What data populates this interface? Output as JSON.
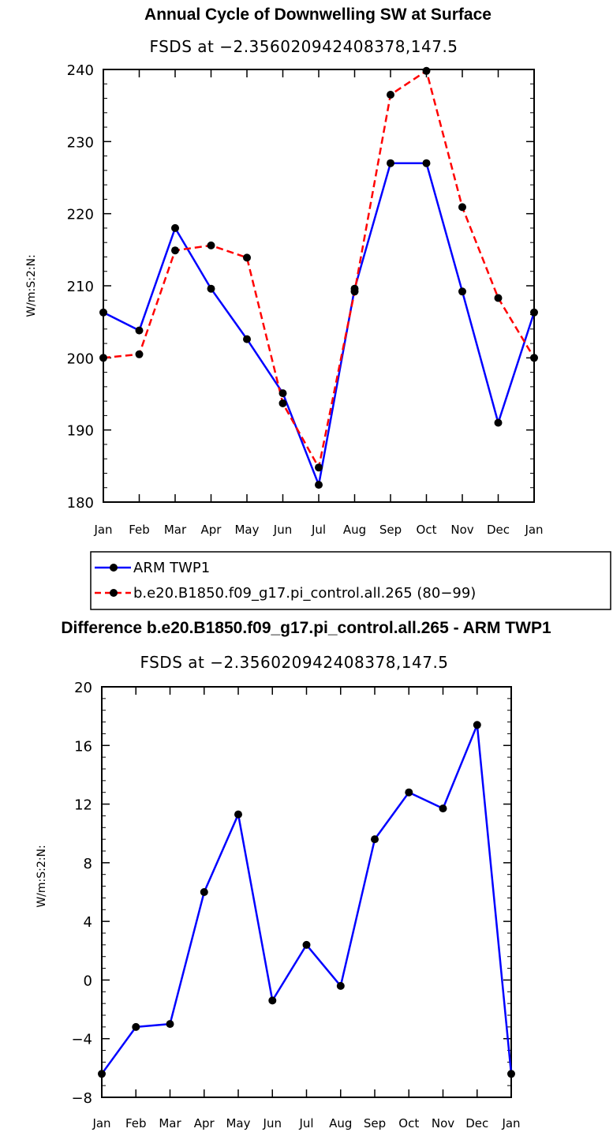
{
  "chart_data": [
    {
      "type": "line",
      "title": "Annual Cycle of Downwelling SW at Surface",
      "subtitle": "FSDS at −2.356020942408378,147.5",
      "ylabel": "W/m:S:2:N:",
      "xlabel": "",
      "categories": [
        "Jan",
        "Feb",
        "Mar",
        "Apr",
        "May",
        "Jun",
        "Jul",
        "Aug",
        "Sep",
        "Oct",
        "Nov",
        "Dec",
        "Jan"
      ],
      "ylim": [
        180,
        240
      ],
      "yticks": [
        180,
        190,
        200,
        210,
        220,
        230,
        240
      ],
      "series": [
        {
          "name": "ARM TWP1",
          "color": "#0000ff",
          "dash": "solid",
          "values": [
            206.3,
            203.8,
            218.0,
            209.6,
            202.6,
            195.1,
            182.4,
            209.6,
            227.0,
            227.0,
            209.2,
            191.0,
            206.3
          ]
        },
        {
          "name": "b.e20.B1850.f09_g17.pi_control.all.265 (80−99)",
          "color": "#ff0000",
          "dash": "dashed",
          "values": [
            200.0,
            200.5,
            214.9,
            215.6,
            213.9,
            193.7,
            184.8,
            209.2,
            236.5,
            239.8,
            220.9,
            208.3,
            200.0
          ]
        }
      ]
    },
    {
      "type": "line",
      "title": "Difference b.e20.B1850.f09_g17.pi_control.all.265 - ARM TWP1",
      "subtitle": "FSDS at −2.356020942408378,147.5",
      "ylabel": "W/m:S:2:N:",
      "xlabel": "",
      "categories": [
        "Jan",
        "Feb",
        "Mar",
        "Apr",
        "May",
        "Jun",
        "Jul",
        "Aug",
        "Sep",
        "Oct",
        "Nov",
        "Dec",
        "Jan"
      ],
      "ylim": [
        -8,
        20
      ],
      "yticks": [
        -8,
        -4,
        0,
        4,
        8,
        12,
        16,
        20
      ],
      "ytick_labels": [
        "−8",
        "−4",
        "0",
        "4",
        "8",
        "12",
        "16",
        "20"
      ],
      "series": [
        {
          "name": "Difference",
          "color": "#0000ff",
          "dash": "solid",
          "values": [
            -6.4,
            -3.2,
            -3.0,
            6.0,
            11.3,
            -1.4,
            2.4,
            -0.4,
            9.6,
            12.8,
            11.7,
            17.4,
            -6.4
          ]
        }
      ]
    }
  ]
}
